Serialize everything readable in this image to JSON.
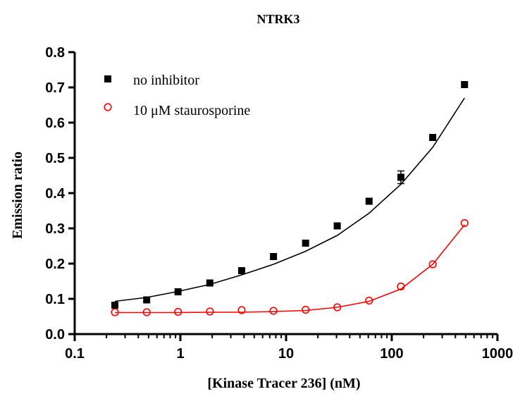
{
  "chart_data": {
    "type": "scatter",
    "title": "NTRK3",
    "xlabel": "[Kinase Tracer 236] (nM)",
    "ylabel": "Emission ratio",
    "xscale": "log",
    "xlim": [
      0.1,
      1000
    ],
    "ylim": [
      0.0,
      0.8
    ],
    "xticks": [
      0.1,
      1,
      10,
      100,
      1000
    ],
    "xtick_labels": [
      "0.1",
      "1",
      "10",
      "100",
      "1000"
    ],
    "yticks": [
      0.0,
      0.1,
      0.2,
      0.3,
      0.4,
      0.5,
      0.6,
      0.7,
      0.8
    ],
    "ytick_labels": [
      "0.0",
      "0.1",
      "0.2",
      "0.3",
      "0.4",
      "0.5",
      "0.6",
      "0.7",
      "0.8"
    ],
    "grid": false,
    "legend_position": "top-left",
    "series": [
      {
        "name": "no inhibitor",
        "marker": "filled-square",
        "color": "#000000",
        "x": [
          0.24,
          0.48,
          0.95,
          1.9,
          3.8,
          7.6,
          15.3,
          30.5,
          61,
          122,
          244,
          488
        ],
        "y": [
          0.082,
          0.097,
          0.12,
          0.145,
          0.18,
          0.22,
          0.258,
          0.307,
          0.377,
          0.445,
          0.558,
          0.708
        ],
        "error": [
          0,
          0,
          0,
          0,
          0,
          0,
          0,
          0,
          0,
          0.018,
          0,
          0
        ],
        "fit_y": [
          0.093,
          0.104,
          0.121,
          0.141,
          0.168,
          0.198,
          0.235,
          0.28,
          0.343,
          0.425,
          0.53,
          0.67
        ]
      },
      {
        "name": "10 μM staurosporine",
        "marker": "open-circle",
        "color": "#ff0000",
        "x": [
          0.24,
          0.48,
          0.95,
          1.9,
          3.8,
          7.6,
          15.3,
          30.5,
          61,
          122,
          244,
          488
        ],
        "y": [
          0.062,
          0.062,
          0.063,
          0.064,
          0.068,
          0.066,
          0.069,
          0.076,
          0.095,
          0.135,
          0.198,
          0.315
        ],
        "error": [
          0,
          0,
          0,
          0,
          0,
          0,
          0,
          0,
          0,
          0,
          0,
          0
        ],
        "fit_y": [
          0.061,
          0.061,
          0.061,
          0.062,
          0.062,
          0.064,
          0.067,
          0.076,
          0.093,
          0.128,
          0.198,
          0.31
        ]
      }
    ]
  }
}
